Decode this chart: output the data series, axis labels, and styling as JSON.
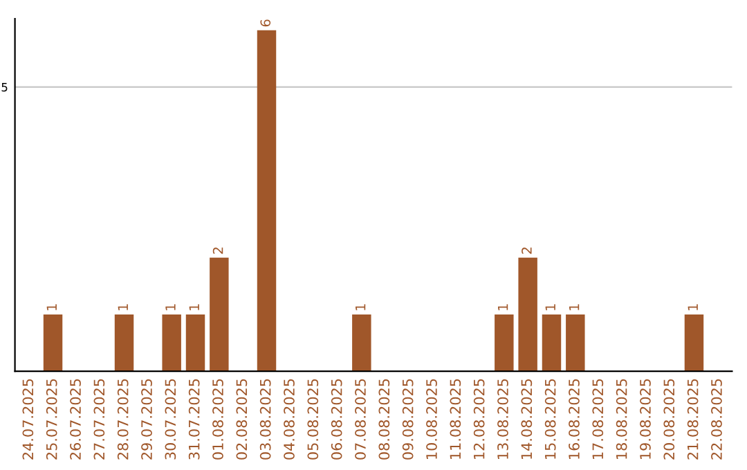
{
  "chart_data": {
    "type": "bar",
    "categories": [
      "24.07.2025",
      "25.07.2025",
      "26.07.2025",
      "27.07.2025",
      "28.07.2025",
      "29.07.2025",
      "30.07.2025",
      "31.07.2025",
      "01.08.2025",
      "02.08.2025",
      "03.08.2025",
      "04.08.2025",
      "05.08.2025",
      "06.08.2025",
      "07.08.2025",
      "08.08.2025",
      "09.08.2025",
      "10.08.2025",
      "11.08.2025",
      "12.08.2025",
      "13.08.2025",
      "14.08.2025",
      "15.08.2025",
      "16.08.2025",
      "17.08.2025",
      "18.08.2025",
      "19.08.2025",
      "20.08.2025",
      "21.08.2025",
      "22.08.2025"
    ],
    "values": [
      0,
      1,
      0,
      0,
      1,
      0,
      1,
      1,
      2,
      0,
      6,
      0,
      0,
      0,
      1,
      0,
      0,
      0,
      0,
      0,
      1,
      2,
      1,
      1,
      0,
      0,
      0,
      0,
      1,
      0
    ],
    "value_labels": [
      null,
      "1",
      null,
      null,
      "1",
      null,
      "1",
      "1",
      "2",
      null,
      "6",
      null,
      null,
      null,
      "1",
      null,
      null,
      null,
      null,
      null,
      "1",
      "2",
      "1",
      "1",
      null,
      null,
      null,
      null,
      "1",
      null
    ],
    "color": "#a0572a",
    "ylim": [
      0,
      6.2
    ],
    "yticks": [
      5
    ],
    "grid": "y"
  }
}
